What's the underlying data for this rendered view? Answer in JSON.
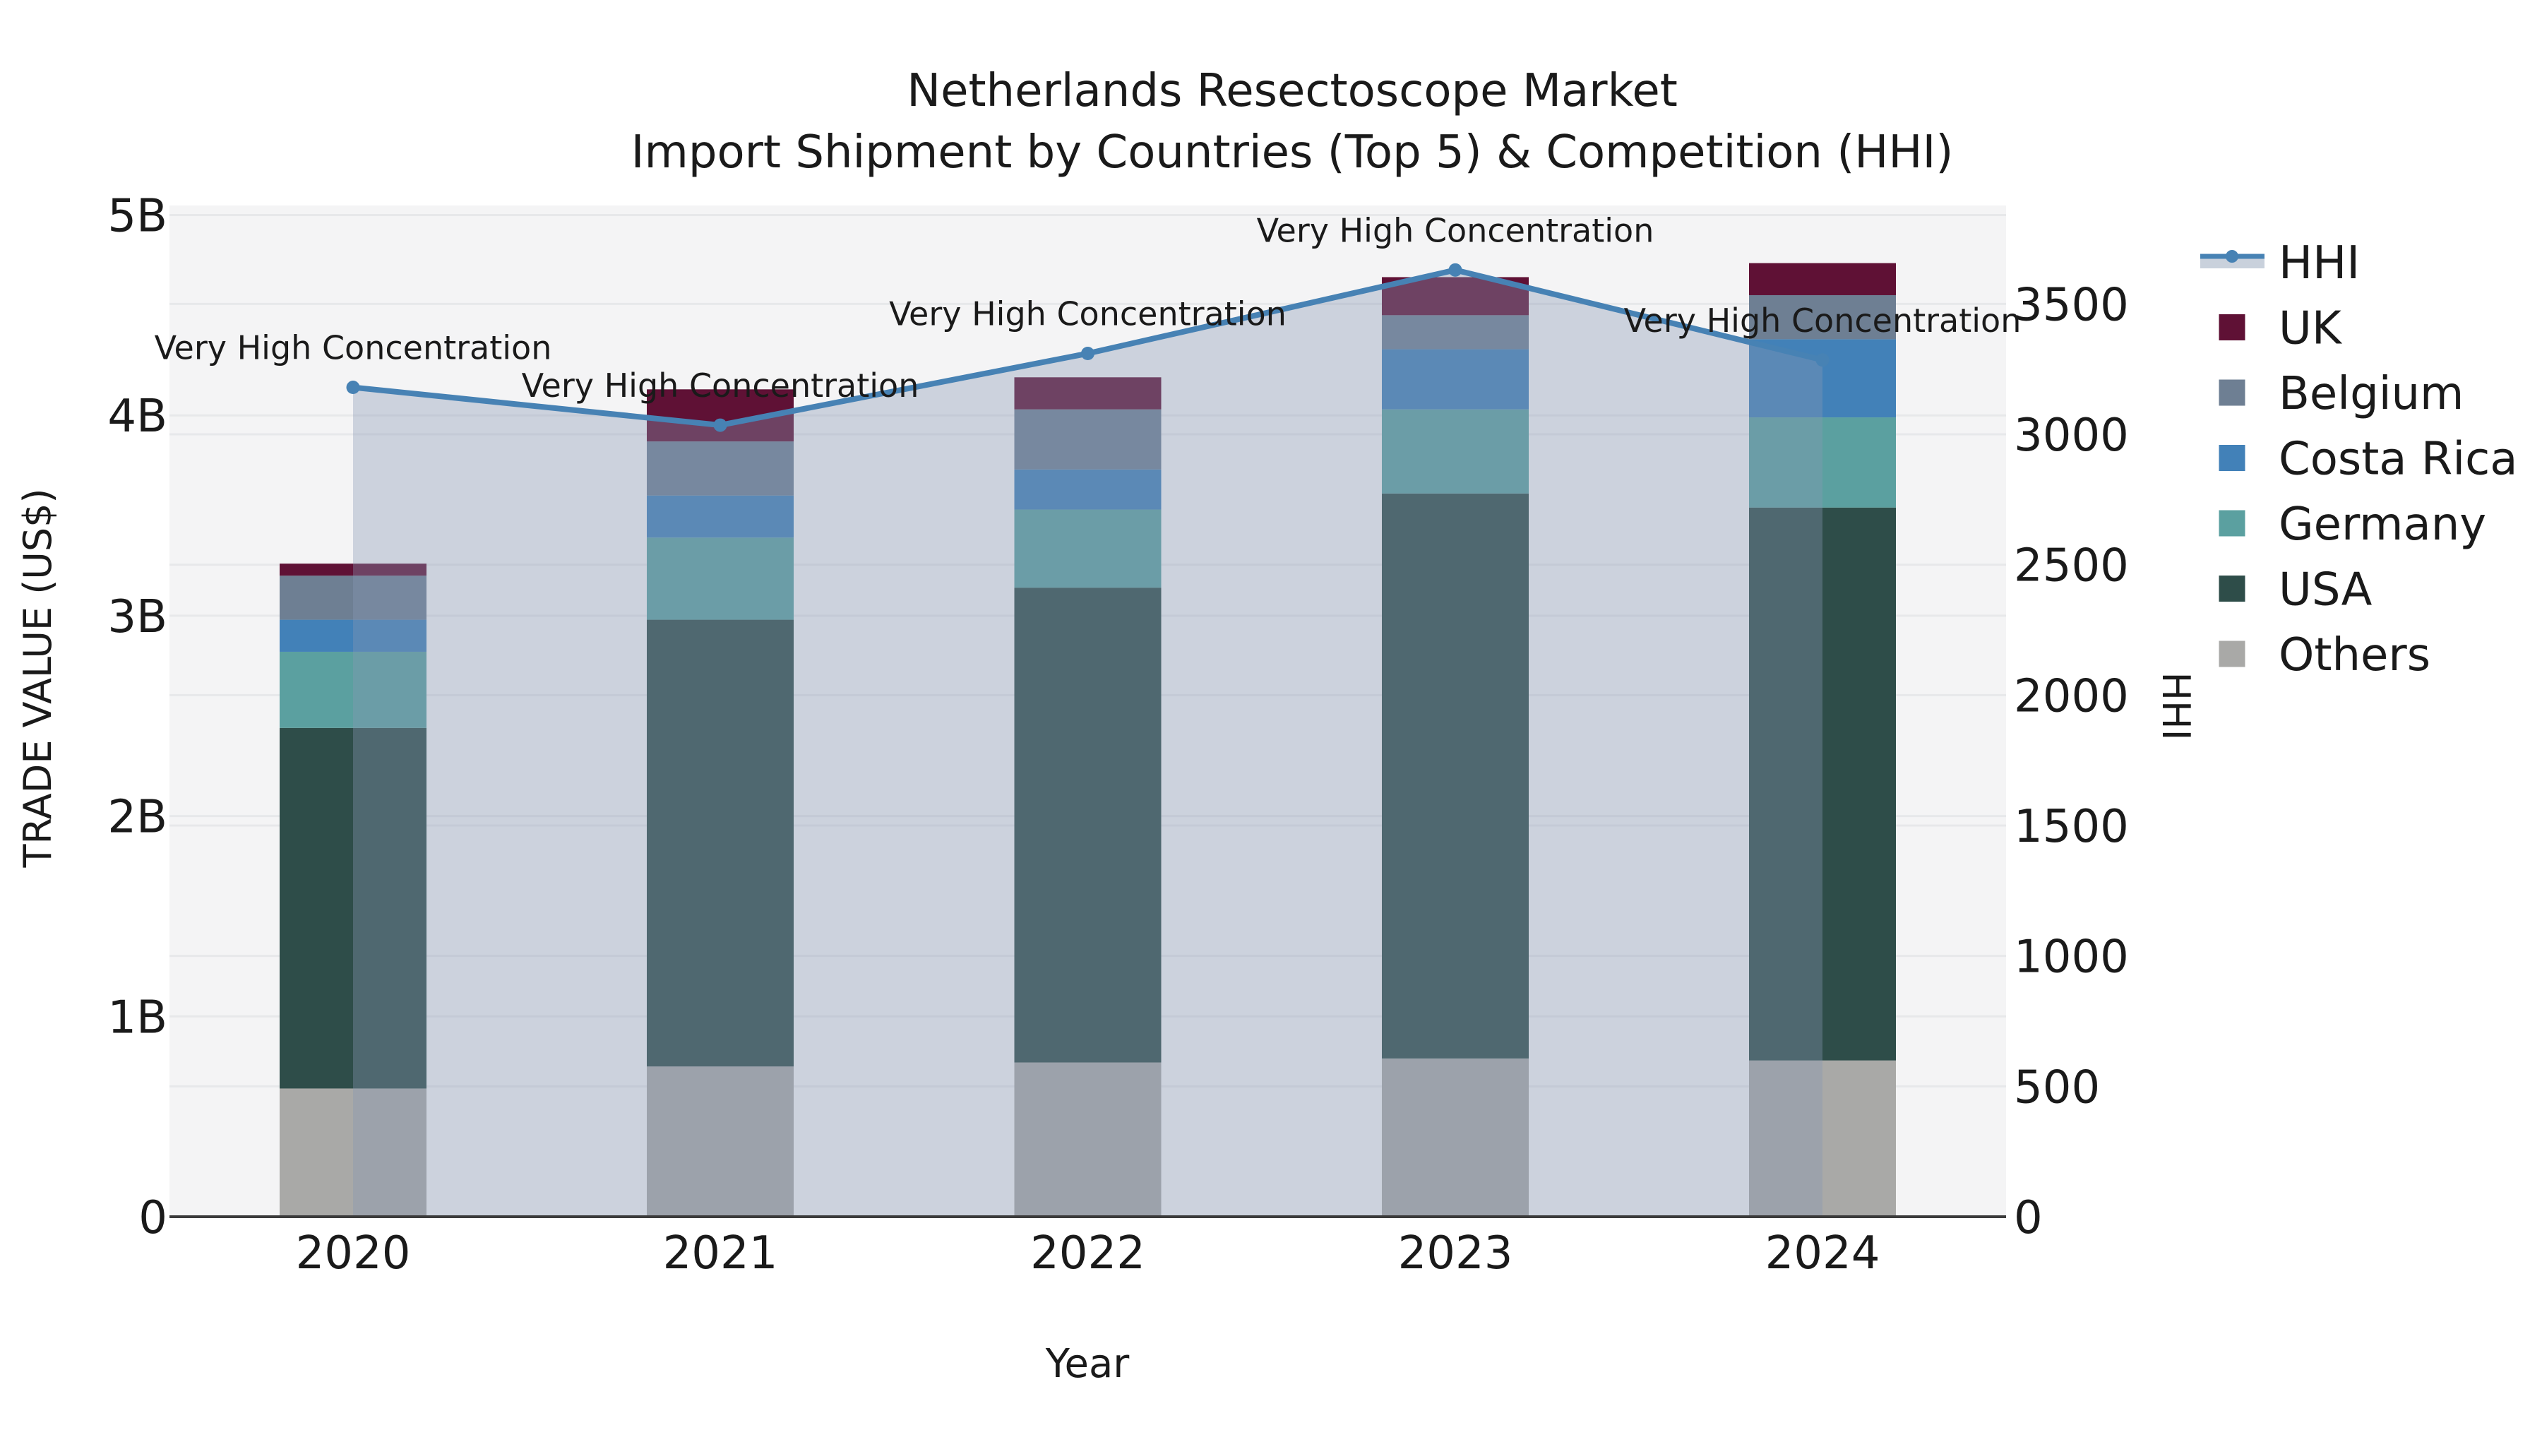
{
  "title": {
    "line1": "Netherlands Resectoscope Market",
    "line2": "Import Shipment by Countries (Top 5) & Competition (HHI)"
  },
  "axes": {
    "x": {
      "label": "Year",
      "ticks": [
        "2020",
        "2021",
        "2022",
        "2023",
        "2024"
      ]
    },
    "y_left": {
      "label": "TRADE VALUE (US$)",
      "ticks": [
        "0",
        "1B",
        "2B",
        "3B",
        "4B",
        "5B"
      ],
      "tick_values": [
        0,
        1,
        2,
        3,
        4,
        5
      ]
    },
    "y_right": {
      "label": "HHI",
      "ticks": [
        "0",
        "500",
        "1000",
        "1500",
        "2000",
        "2500",
        "3000",
        "3500"
      ],
      "tick_values": [
        0,
        500,
        1000,
        1500,
        2000,
        2500,
        3000,
        3500
      ]
    }
  },
  "legend": {
    "items": [
      {
        "label": "HHI",
        "type": "line-area",
        "color": "#4782b4"
      },
      {
        "label": "UK",
        "type": "square",
        "color": "#5f1135"
      },
      {
        "label": "Belgium",
        "type": "square",
        "color": "#6e7f93"
      },
      {
        "label": "Costa Rica",
        "type": "square",
        "color": "#4281b8"
      },
      {
        "label": "Germany",
        "type": "square",
        "color": "#5ba0a0"
      },
      {
        "label": "USA",
        "type": "square",
        "color": "#2e4d49"
      },
      {
        "label": "Others",
        "type": "square",
        "color": "#a9a9a7"
      }
    ]
  },
  "colors": {
    "hhi_line": "#4782b4",
    "hhi_fill_rgba": "rgba(136,152,178,0.37)",
    "legend_band_rgba": "rgba(136,152,178,0.45)",
    "plot_background": "#f4f4f5",
    "gridline": "#e7e8ea",
    "axis_line": "#3b3b3b",
    "text": "#1a1a1a"
  },
  "chart_data": {
    "type": "bar",
    "stacked": true,
    "title": "Netherlands Resectoscope Market — Import Shipment by Countries (Top 5) & Competition (HHI)",
    "xlabel": "Year",
    "ylabel_left": "TRADE VALUE (US$)",
    "ylabel_right": "HHI",
    "categories": [
      "2020",
      "2021",
      "2022",
      "2023",
      "2024"
    ],
    "value_unit": "billions US$",
    "stack_bottom_to_top": [
      "Others",
      "USA",
      "Germany",
      "Costa Rica",
      "Belgium",
      "UK"
    ],
    "series": [
      {
        "name": "UK",
        "color": "#5f1135",
        "values": [
          0.06,
          0.26,
          0.16,
          0.19,
          0.16
        ]
      },
      {
        "name": "Belgium",
        "color": "#6e7f93",
        "values": [
          0.22,
          0.27,
          0.3,
          0.17,
          0.22
        ]
      },
      {
        "name": "Costa Rica",
        "color": "#4281b8",
        "values": [
          0.16,
          0.21,
          0.2,
          0.3,
          0.39
        ]
      },
      {
        "name": "Germany",
        "color": "#5ba0a0",
        "values": [
          0.38,
          0.41,
          0.39,
          0.42,
          0.45
        ]
      },
      {
        "name": "USA",
        "color": "#2e4d49",
        "values": [
          1.8,
          2.23,
          2.37,
          2.82,
          2.76
        ]
      },
      {
        "name": "Others",
        "color": "#a9a9a7",
        "values": [
          0.64,
          0.75,
          0.77,
          0.79,
          0.78
        ]
      }
    ],
    "bar_totals": [
      3.26,
      4.13,
      4.19,
      4.69,
      4.76
    ],
    "line": {
      "name": "HHI",
      "axis": "right",
      "color": "#4782b4",
      "area_fill": "rgba(136,152,178,0.37)",
      "values": [
        3180,
        3035,
        3310,
        3630,
        3285
      ]
    },
    "annotations": [
      "Very High Concentration",
      "Very High Concentration",
      "Very High Concentration",
      "Very High Concentration",
      "Very High Concentration"
    ],
    "ylim_left": [
      0,
      5.05
    ],
    "ylim_right": [
      0,
      3878
    ],
    "grid": true,
    "legend_position": "right"
  }
}
